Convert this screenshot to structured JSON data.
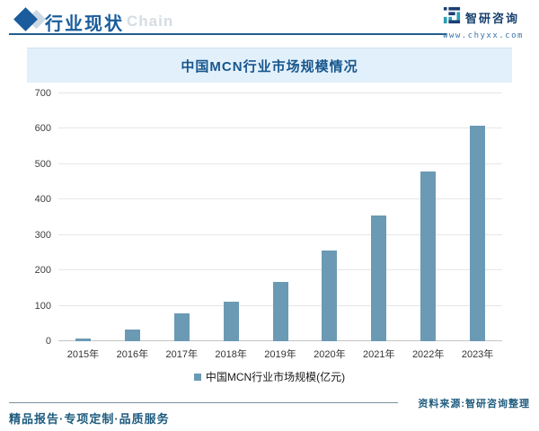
{
  "header": {
    "title": "行业现状",
    "watermark": "Chain",
    "brand": {
      "name": "智研咨询",
      "url": "www.chyxx.com"
    }
  },
  "banner": {
    "title": "中国MCN行业市场规模情况"
  },
  "chart_data": {
    "type": "bar",
    "title": "中国MCN行业市场规模情况",
    "categories": [
      "2015年",
      "2016年",
      "2017年",
      "2018年",
      "2019年",
      "2020年",
      "2021年",
      "2022年",
      "2023年"
    ],
    "values": [
      8,
      32,
      78,
      112,
      168,
      255,
      355,
      480,
      608
    ],
    "legend": "中国MCN行业市场规模(亿元)",
    "legend_position": "bottom",
    "unit": "亿元",
    "xlabel": "",
    "ylabel": "",
    "ylim": [
      0,
      700
    ],
    "yticks": [
      0,
      100,
      200,
      300,
      400,
      500,
      600,
      700
    ],
    "grid": true,
    "bar_color": "#6b9ab4"
  },
  "footer": {
    "source": "资料来源:智研咨询整理",
    "tagline": "精品报告·专项定制·品质服务"
  }
}
